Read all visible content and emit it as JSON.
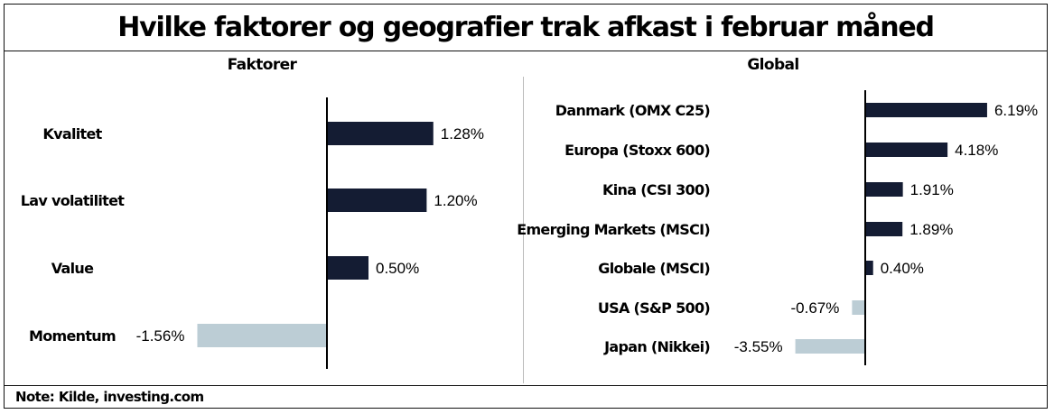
{
  "title": "Hvilke faktorer og geografier trak afkast i februar måned",
  "note": "Note: Kilde, investing.com",
  "colors": {
    "positive": "#141c33",
    "negative": "#bccdd5",
    "axis": "#000000"
  },
  "chart_data": [
    {
      "type": "bar",
      "orientation": "horizontal",
      "title": "Faktorer",
      "categories": [
        "Kvalitet",
        "Lav volatilitet",
        "Value",
        "Momentum"
      ],
      "values": [
        1.28,
        1.2,
        0.5,
        -1.56
      ],
      "labels": [
        "1.28%",
        "1.20%",
        "0.50%",
        "-1.56%"
      ],
      "unit": "%"
    },
    {
      "type": "bar",
      "orientation": "horizontal",
      "title": "Global",
      "categories": [
        "Danmark (OMX C25)",
        "Europa (Stoxx 600)",
        "Kina (CSI 300)",
        "Emerging Markets (MSCI)",
        "Globale (MSCI)",
        "USA (S&P 500)",
        "Japan (Nikkei)"
      ],
      "values": [
        6.19,
        4.18,
        1.91,
        1.89,
        0.4,
        -0.67,
        -3.55
      ],
      "labels": [
        "6.19%",
        "4.18%",
        "1.91%",
        "1.89%",
        "0.40%",
        "-0.67%",
        "-3.55%"
      ],
      "unit": "%"
    }
  ]
}
